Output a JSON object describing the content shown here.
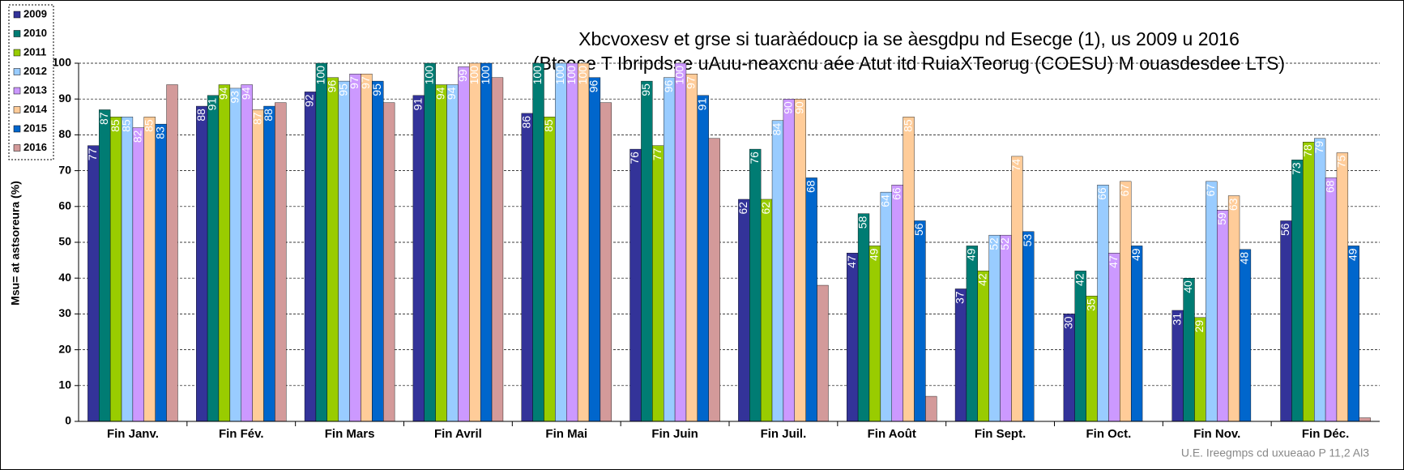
{
  "chart_data": {
    "type": "bar",
    "title": "Xbcvoxesv et grse si tuaràédoucp ia se àesgdpu nd Esecge (1), us 2009 u 2016",
    "subtitle": "(Btsese T Ibripdsse uAuu-neaxcnu aée Atut itd RuiaXTeorug (COESU) M ouasdesdee LTS)",
    "y_label": "Msu= at astsoreura (%)",
    "footer": "U.E. Ireegmps cd uxueaao P 11,2 Al3",
    "categories": [
      "Fin Janv.",
      "Fin Fév.",
      "Fin Mars",
      "Fin Avril",
      "Fin Mai",
      "Fin Juin",
      "Fin Juil.",
      "Fin Août",
      "Fin Sept.",
      "Fin Oct.",
      "Fin Nov.",
      "Fin Déc."
    ],
    "series": [
      {
        "name": "2009",
        "color": "#333399",
        "data_labels": true,
        "values": [
          77,
          88,
          92,
          91,
          86,
          76,
          62,
          47,
          37,
          30,
          31,
          56
        ]
      },
      {
        "name": "2010",
        "color": "#007c73",
        "data_labels": true,
        "values": [
          87,
          91,
          100,
          100,
          100,
          95,
          76,
          58,
          49,
          42,
          40,
          73
        ]
      },
      {
        "name": "2011",
        "color": "#99cc00",
        "data_labels": true,
        "values": [
          85,
          94,
          96,
          94,
          85,
          77,
          62,
          49,
          42,
          35,
          29,
          78
        ]
      },
      {
        "name": "2012",
        "color": "#99ccff",
        "data_labels": true,
        "values": [
          85,
          93,
          95,
          94,
          100,
          96,
          84,
          64,
          52,
          66,
          67,
          79
        ]
      },
      {
        "name": "2013",
        "color": "#cc99ff",
        "data_labels": true,
        "values": [
          82,
          94,
          97,
          99,
          100,
          100,
          90,
          66,
          52,
          47,
          59,
          68
        ]
      },
      {
        "name": "2014",
        "color": "#ffcc99",
        "data_labels": true,
        "values": [
          85,
          87,
          97,
          100,
          100,
          97,
          90,
          85,
          74,
          67,
          63,
          75
        ]
      },
      {
        "name": "2015",
        "color": "#0066cc",
        "data_labels": true,
        "values": [
          83,
          88,
          95,
          100,
          96,
          91,
          68,
          56,
          53,
          49,
          48,
          49
        ]
      },
      {
        "name": "2016",
        "color": "#d39a9a",
        "data_labels": false,
        "values": [
          94,
          89,
          89,
          96,
          89,
          79,
          38,
          7,
          null,
          null,
          null,
          1
        ]
      }
    ],
    "ylim": [
      0,
      100
    ],
    "yticks": [
      0,
      10,
      20,
      30,
      40,
      50,
      60,
      70,
      80,
      90,
      100
    ],
    "grid": true,
    "legend": "upper left"
  }
}
